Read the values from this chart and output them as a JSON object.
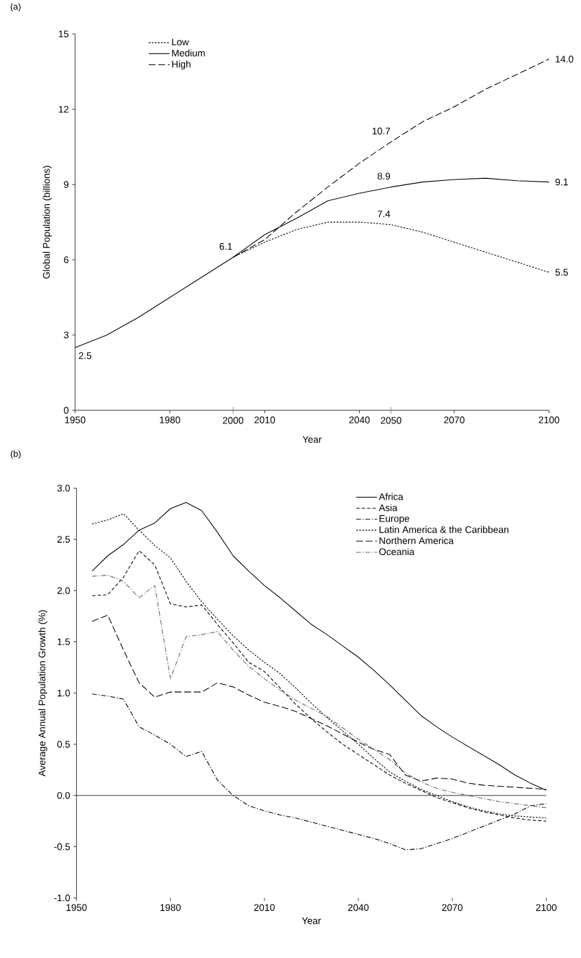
{
  "chart_data": [
    {
      "type": "line",
      "title": "(a)",
      "xlabel": "Year",
      "ylabel": "Global Population (billions)",
      "xlim": [
        1950,
        2100
      ],
      "ylim": [
        0,
        15
      ],
      "xticks": [
        1950,
        1980,
        {
          "value": 2000,
          "label": "2000"
        },
        2010,
        2040,
        {
          "value": 2050,
          "label": "2050"
        },
        2070,
        2100
      ],
      "yticks": [
        0,
        3,
        6,
        9,
        12,
        15
      ],
      "grid": false,
      "legend": "top left",
      "marker": "none",
      "series": [
        {
          "name": "Low",
          "color": "#000000",
          "line_style": "dotted",
          "x": [
            2000,
            2010,
            2020,
            2030,
            2040,
            2050,
            2060,
            2070,
            2080,
            2090,
            2100
          ],
          "values": [
            6.1,
            6.7,
            7.2,
            7.5,
            7.5,
            7.4,
            7.1,
            6.7,
            6.3,
            5.9,
            5.5
          ]
        },
        {
          "name": "Medium",
          "color": "#000000",
          "line_style": "solid",
          "x": [
            1950,
            1960,
            1970,
            1980,
            1990,
            2000,
            2010,
            2020,
            2030,
            2040,
            2050,
            2060,
            2070,
            2080,
            2090,
            2100
          ],
          "values": [
            2.5,
            3.0,
            3.7,
            4.5,
            5.3,
            6.1,
            7.0,
            7.65,
            8.35,
            8.65,
            8.9,
            9.1,
            9.2,
            9.25,
            9.15,
            9.1
          ]
        },
        {
          "name": "High",
          "color": "#000000",
          "line_style": "longdash",
          "x": [
            2000,
            2010,
            2020,
            2030,
            2040,
            2050,
            2060,
            2070,
            2080,
            2090,
            2100
          ],
          "values": [
            6.1,
            6.8,
            7.9,
            8.9,
            9.85,
            10.7,
            11.5,
            12.1,
            12.8,
            13.4,
            14.0
          ]
        }
      ],
      "annotations": [
        {
          "text": "2.5",
          "x": 1950,
          "y": 2.5
        },
        {
          "text": "6.1",
          "x": 2000,
          "y": 6.1
        },
        {
          "text": "7.4",
          "x": 2050,
          "y": 7.4
        },
        {
          "text": "8.9",
          "x": 2050,
          "y": 8.9
        },
        {
          "text": "10.7",
          "x": 2050,
          "y": 10.7
        },
        {
          "text": "14.0",
          "x": 2100,
          "y": 14.0
        },
        {
          "text": "9.1",
          "x": 2100,
          "y": 9.1
        },
        {
          "text": "5.5",
          "x": 2100,
          "y": 5.5
        }
      ]
    },
    {
      "type": "line",
      "title": "(b)",
      "xlabel": "Year",
      "ylabel": "Average Annual Population Growth (%)",
      "xlim": [
        1950,
        2100
      ],
      "ylim": [
        -1.0,
        3.0
      ],
      "xticks": [
        1950,
        1980,
        2010,
        2040,
        2070,
        2100
      ],
      "yticks": [
        {
          "value": -1.0,
          "label": "-1.0"
        },
        {
          "value": -0.5,
          "label": "-0.5"
        },
        {
          "value": 0,
          "label": "0.0"
        },
        {
          "value": 0.5,
          "label": "0.5"
        },
        {
          "value": 1.0,
          "label": "1.0"
        },
        {
          "value": 1.5,
          "label": "1.5"
        },
        {
          "value": 2.0,
          "label": "2.0"
        },
        {
          "value": 2.5,
          "label": "2.5"
        },
        {
          "value": 3.0,
          "label": "3.0"
        }
      ],
      "grid": false,
      "legend": "top right",
      "marker": "none",
      "ref_lines": [
        {
          "axis": "y",
          "value": 0,
          "color": "#000000"
        }
      ],
      "x": [
        1955,
        1960,
        1965,
        1970,
        1975,
        1980,
        1985,
        1990,
        1995,
        2000,
        2005,
        2010,
        2015,
        2020,
        2025,
        2030,
        2035,
        2040,
        2045,
        2050,
        2055,
        2060,
        2065,
        2070,
        2075,
        2080,
        2085,
        2090,
        2095,
        2100
      ],
      "series": [
        {
          "name": "Africa",
          "color": "#000000",
          "line_style": "solid",
          "values": [
            2.19,
            2.34,
            2.45,
            2.59,
            2.66,
            2.8,
            2.86,
            2.78,
            2.57,
            2.34,
            2.19,
            2.05,
            1.93,
            1.8,
            1.67,
            1.57,
            1.46,
            1.35,
            1.22,
            1.08,
            0.93,
            0.78,
            0.67,
            0.57,
            0.48,
            0.39,
            0.3,
            0.2,
            0.12,
            0.05
          ]
        },
        {
          "name": "Asia",
          "color": "#000000",
          "line_style": "dashed",
          "values": [
            1.95,
            1.96,
            2.13,
            2.39,
            2.25,
            1.87,
            1.84,
            1.86,
            1.67,
            1.49,
            1.3,
            1.21,
            1.05,
            0.89,
            0.75,
            0.62,
            0.5,
            0.4,
            0.3,
            0.2,
            0.12,
            0.05,
            -0.02,
            -0.07,
            -0.12,
            -0.16,
            -0.19,
            -0.22,
            -0.24,
            -0.25
          ]
        },
        {
          "name": "Europe",
          "color": "#000000",
          "line_style": "dashdot",
          "values": [
            0.99,
            0.97,
            0.94,
            0.67,
            0.59,
            0.5,
            0.38,
            0.43,
            0.15,
            0.0,
            -0.1,
            -0.15,
            -0.19,
            -0.22,
            -0.26,
            -0.3,
            -0.34,
            -0.38,
            -0.42,
            -0.47,
            -0.53,
            -0.52,
            -0.47,
            -0.42,
            -0.36,
            -0.3,
            -0.24,
            -0.18,
            -0.1,
            -0.08
          ]
        },
        {
          "name": "Latin America & the Caribbean",
          "color": "#000000",
          "line_style": "dotted",
          "values": [
            2.65,
            2.69,
            2.75,
            2.59,
            2.44,
            2.32,
            2.09,
            1.89,
            1.72,
            1.56,
            1.42,
            1.3,
            1.19,
            1.05,
            0.9,
            0.76,
            0.63,
            0.5,
            0.36,
            0.23,
            0.14,
            0.06,
            0.0,
            -0.06,
            -0.11,
            -0.15,
            -0.18,
            -0.2,
            -0.21,
            -0.22
          ]
        },
        {
          "name": "Northern America",
          "color": "#000000",
          "line_style": "longdash",
          "values": [
            1.7,
            1.76,
            1.42,
            1.1,
            0.96,
            1.01,
            1.01,
            1.01,
            1.1,
            1.06,
            0.98,
            0.91,
            0.87,
            0.82,
            0.75,
            0.68,
            0.6,
            0.52,
            0.45,
            0.4,
            0.2,
            0.14,
            0.17,
            0.16,
            0.12,
            0.1,
            0.09,
            0.08,
            0.07,
            0.06
          ]
        },
        {
          "name": "Oceania",
          "color": "#666666",
          "line_style": "dashdot",
          "values": [
            2.14,
            2.15,
            2.09,
            1.93,
            2.05,
            1.14,
            1.55,
            1.57,
            1.6,
            1.42,
            1.26,
            1.14,
            1.03,
            0.93,
            0.85,
            0.77,
            0.66,
            0.55,
            0.45,
            0.35,
            0.22,
            0.13,
            0.07,
            0.03,
            0.0,
            -0.03,
            -0.06,
            -0.08,
            -0.1,
            -0.12
          ]
        }
      ]
    }
  ]
}
